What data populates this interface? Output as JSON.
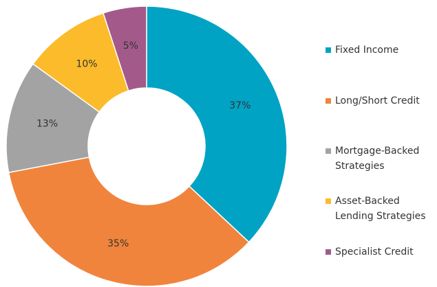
{
  "chart_data": {
    "type": "pie",
    "categories": [
      "Fixed Income",
      "Long/Short Credit",
      "Mortgage-Backed Strategies",
      "Asset-Backed Lending Strategies",
      "Specialist Credit"
    ],
    "values": [
      37,
      35,
      13,
      10,
      5
    ],
    "value_labels": [
      "37%",
      "35%",
      "13%",
      "10%",
      "5%"
    ],
    "colors": [
      "#00a3c4",
      "#f0843c",
      "#a3a3a3",
      "#fbbb2a",
      "#a35a8a"
    ],
    "legend": "right"
  }
}
